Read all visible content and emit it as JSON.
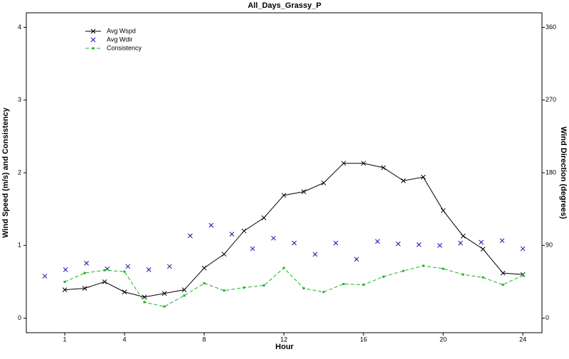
{
  "chart_data": {
    "type": "line",
    "title": "All_Days_Grassy_P",
    "x_label": "Hour",
    "y_label": "Wind Speed (m/s) and Consistency",
    "y2_label": "Wind Direction (degrees)",
    "x": [
      1,
      2,
      3,
      4,
      5,
      6,
      7,
      8,
      9,
      10,
      11,
      12,
      13,
      14,
      15,
      16,
      17,
      18,
      19,
      20,
      21,
      22,
      23,
      24
    ],
    "xlim": [
      -0.93,
      24.96
    ],
    "xticks": [
      1,
      4,
      8,
      12,
      16,
      20,
      24
    ],
    "ylim": [
      -0.2,
      4.2
    ],
    "yticks": [
      0,
      1,
      2,
      3,
      4
    ],
    "y2lim": [
      -18,
      378
    ],
    "y2ticks": [
      0,
      90,
      180,
      270,
      360
    ],
    "legend": "top-left",
    "series": [
      {
        "name": "Avg Wspd",
        "color": "#000000",
        "style": "solid-x",
        "values": [
          0.39,
          0.41,
          0.5,
          0.36,
          0.29,
          0.34,
          0.39,
          0.69,
          0.88,
          1.2,
          1.38,
          1.69,
          1.74,
          1.86,
          2.13,
          2.13,
          2.07,
          1.89,
          1.94,
          1.48,
          1.13,
          0.95,
          0.62,
          0.6
        ]
      },
      {
        "name": "Avg Wdir",
        "color": "#1010b0",
        "style": "x-only",
        "axis": "y2",
        "x": [
          0,
          1.04,
          2.09,
          3.13,
          4.17,
          5.22,
          6.26,
          7.3,
          8.35,
          9.39,
          10.43,
          11.48,
          12.52,
          13.57,
          14.61,
          15.65,
          16.7,
          17.74,
          18.78,
          19.83,
          20.87,
          21.91,
          22.96,
          24.0
        ],
        "values": [
          52,
          60,
          68,
          61,
          64,
          60,
          64,
          102,
          115,
          104,
          86,
          99,
          93,
          79,
          93,
          73,
          95,
          92,
          91,
          90,
          93,
          94,
          96,
          86
        ]
      },
      {
        "name": "Consistency",
        "color": "#20b020",
        "style": "dashed-square",
        "values": [
          0.5,
          0.62,
          0.66,
          0.64,
          0.22,
          0.16,
          0.31,
          0.48,
          0.38,
          0.42,
          0.45,
          0.69,
          0.41,
          0.36,
          0.47,
          0.46,
          0.57,
          0.65,
          0.72,
          0.68,
          0.6,
          0.56,
          0.46,
          0.59
        ]
      }
    ]
  }
}
